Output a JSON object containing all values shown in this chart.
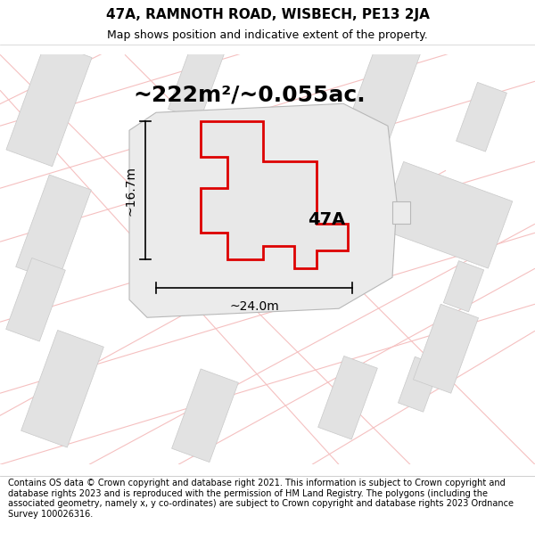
{
  "title": "47A, RAMNOTH ROAD, WISBECH, PE13 2JA",
  "subtitle": "Map shows position and indicative extent of the property.",
  "area_label": "~222m²/~0.055ac.",
  "plot_label": "47A",
  "dim_width": "~24.0m",
  "dim_height": "~16.7m",
  "footer": "Contains OS data © Crown copyright and database right 2021. This information is subject to Crown copyright and database rights 2023 and is reproduced with the permission of HM Land Registry. The polygons (including the associated geometry, namely x, y co-ordinates) are subject to Crown copyright and database rights 2023 Ordnance Survey 100026316.",
  "bg_color": "#ffffff",
  "map_bg": "#f7f7f7",
  "road_color": "#f5c0c0",
  "building_color": "#e2e2e2",
  "building_edge": "#c8c8c8",
  "plot_fill": "#e8e8e8",
  "plot_edge": "#dd0000",
  "dim_color": "#000000",
  "title_color": "#000000",
  "footer_color": "#000000",
  "title_fontsize": 11,
  "subtitle_fontsize": 9,
  "area_fontsize": 18,
  "label_fontsize": 14,
  "dim_fontsize": 10,
  "footer_fontsize": 7
}
